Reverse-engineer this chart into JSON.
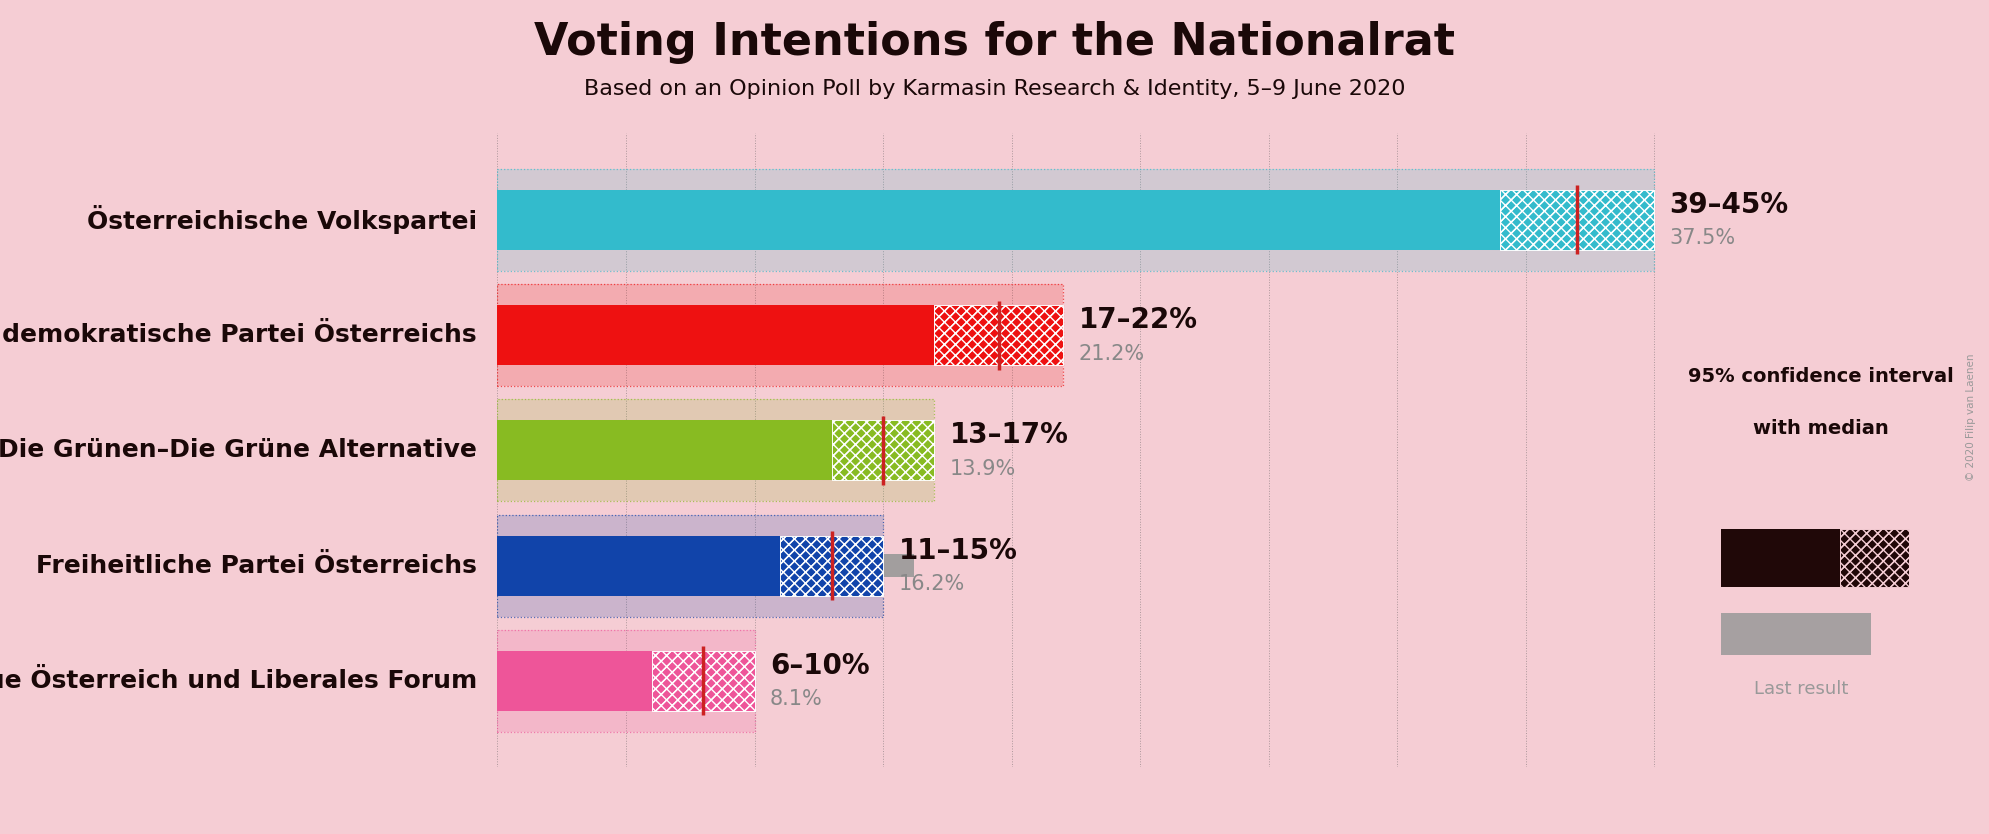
{
  "title": "Voting Intentions for the Nationalrat",
  "subtitle": "Based on an Opinion Poll by Karmasin Research & Identity, 5–9 June 2020",
  "background_color": "#f5cdd4",
  "parties": [
    {
      "name": "Österreichische Volkspartei",
      "ci_low": 39,
      "ci_high": 45,
      "median": 42,
      "last_result": 37.5,
      "color": "#33bbcc",
      "label": "39–45%",
      "last_label": "37.5%"
    },
    {
      "name": "Sozialdemokratische Partei Österreichs",
      "ci_low": 17,
      "ci_high": 22,
      "median": 19.5,
      "last_result": 21.2,
      "color": "#ee1111",
      "label": "17–22%",
      "last_label": "21.2%"
    },
    {
      "name": "Die Grünen–Die Grüne Alternative",
      "ci_low": 13,
      "ci_high": 17,
      "median": 15,
      "last_result": 13.9,
      "color": "#88bb22",
      "label": "13–17%",
      "last_label": "13.9%"
    },
    {
      "name": "Freiheitliche Partei Österreichs",
      "ci_low": 11,
      "ci_high": 15,
      "median": 13,
      "last_result": 16.2,
      "color": "#1144aa",
      "label": "11–15%",
      "last_label": "16.2%"
    },
    {
      "name": "NEOS–Das Neue Österreich und Liberales Forum",
      "ci_low": 6,
      "ci_high": 10,
      "median": 8,
      "last_result": 8.1,
      "color": "#ee5599",
      "label": "6–10%",
      "last_label": "8.1%"
    }
  ],
  "xlim_max": 48,
  "median_line_color": "#cc2222",
  "last_result_bar_color": "#999999",
  "text_color": "#1a0808",
  "label_fontsize": 20,
  "title_fontsize": 32,
  "subtitle_fontsize": 16,
  "party_fontsize": 18,
  "copyright": "© 2020 Filip van Laenen",
  "legend_title_line1": "95% confidence interval",
  "legend_title_line2": "with median",
  "legend_last": "Last result",
  "dark_legend_color": "#200808"
}
